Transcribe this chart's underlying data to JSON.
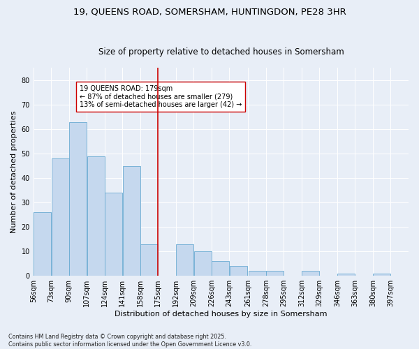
{
  "title_line1": "19, QUEENS ROAD, SOMERSHAM, HUNTINGDON, PE28 3HR",
  "title_line2": "Size of property relative to detached houses in Somersham",
  "xlabel": "Distribution of detached houses by size in Somersham",
  "ylabel": "Number of detached properties",
  "footnote": "Contains HM Land Registry data © Crown copyright and database right 2025.\nContains public sector information licensed under the Open Government Licence v3.0.",
  "bin_labels": [
    "56sqm",
    "73sqm",
    "90sqm",
    "107sqm",
    "124sqm",
    "141sqm",
    "158sqm",
    "175sqm",
    "192sqm",
    "209sqm",
    "226sqm",
    "243sqm",
    "261sqm",
    "278sqm",
    "295sqm",
    "312sqm",
    "329sqm",
    "346sqm",
    "363sqm",
    "380sqm",
    "397sqm"
  ],
  "bar_heights": [
    26,
    48,
    63,
    49,
    34,
    45,
    13,
    0,
    13,
    10,
    6,
    4,
    2,
    2,
    0,
    2,
    0,
    1,
    0,
    1,
    0
  ],
  "bin_edges": [
    56,
    73,
    90,
    107,
    124,
    141,
    158,
    175,
    192,
    209,
    226,
    243,
    261,
    278,
    295,
    312,
    329,
    346,
    363,
    380,
    397
  ],
  "bar_color": "#c5d8ee",
  "bar_edge_color": "#6aabd2",
  "vline_x": 175,
  "vline_color": "#cc0000",
  "annotation_text": "19 QUEENS ROAD: 179sqm\n← 87% of detached houses are smaller (279)\n13% of semi-detached houses are larger (42) →",
  "annotation_box_color": "#ffffff",
  "annotation_box_edge": "#cc0000",
  "ylim": [
    0,
    85
  ],
  "yticks": [
    0,
    10,
    20,
    30,
    40,
    50,
    60,
    70,
    80
  ],
  "background_color": "#e8eef7",
  "grid_color": "#ffffff",
  "title_fontsize": 9.5,
  "subtitle_fontsize": 8.5,
  "axis_label_fontsize": 8,
  "tick_fontsize": 7,
  "annot_fontsize": 7,
  "footnote_fontsize": 5.8
}
